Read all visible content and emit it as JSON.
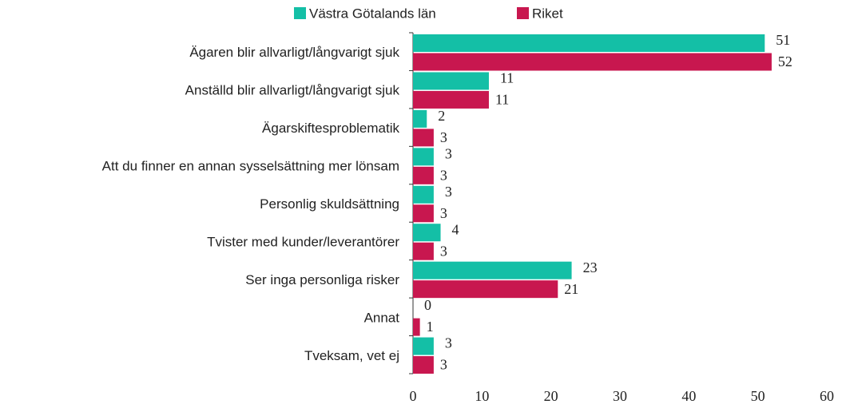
{
  "chart_data": {
    "type": "barh",
    "categories": [
      "Ägaren blir allvarligt/långvarigt sjuk",
      "Anställd blir allvarligt/långvarigt sjuk",
      "Ägarskiftesproblematik",
      "Att du finner en annan sysselsättning mer lönsam",
      "Personlig skuldsättning",
      "Tvister med kunder/leverantörer",
      "Ser inga personliga risker",
      "Annat",
      "Tveksam, vet ej"
    ],
    "series": [
      {
        "name": "Västra Götalands län",
        "color": "#14bfa6",
        "values": [
          51,
          11,
          2,
          3,
          3,
          4,
          23,
          0,
          3
        ]
      },
      {
        "name": "Riket",
        "color": "#c8174f",
        "values": [
          52,
          11,
          3,
          3,
          3,
          3,
          21,
          1,
          3
        ]
      }
    ],
    "xlim": [
      0,
      60
    ],
    "xticks": [
      0,
      10,
      20,
      30,
      40,
      50,
      60
    ],
    "legend": "top"
  }
}
